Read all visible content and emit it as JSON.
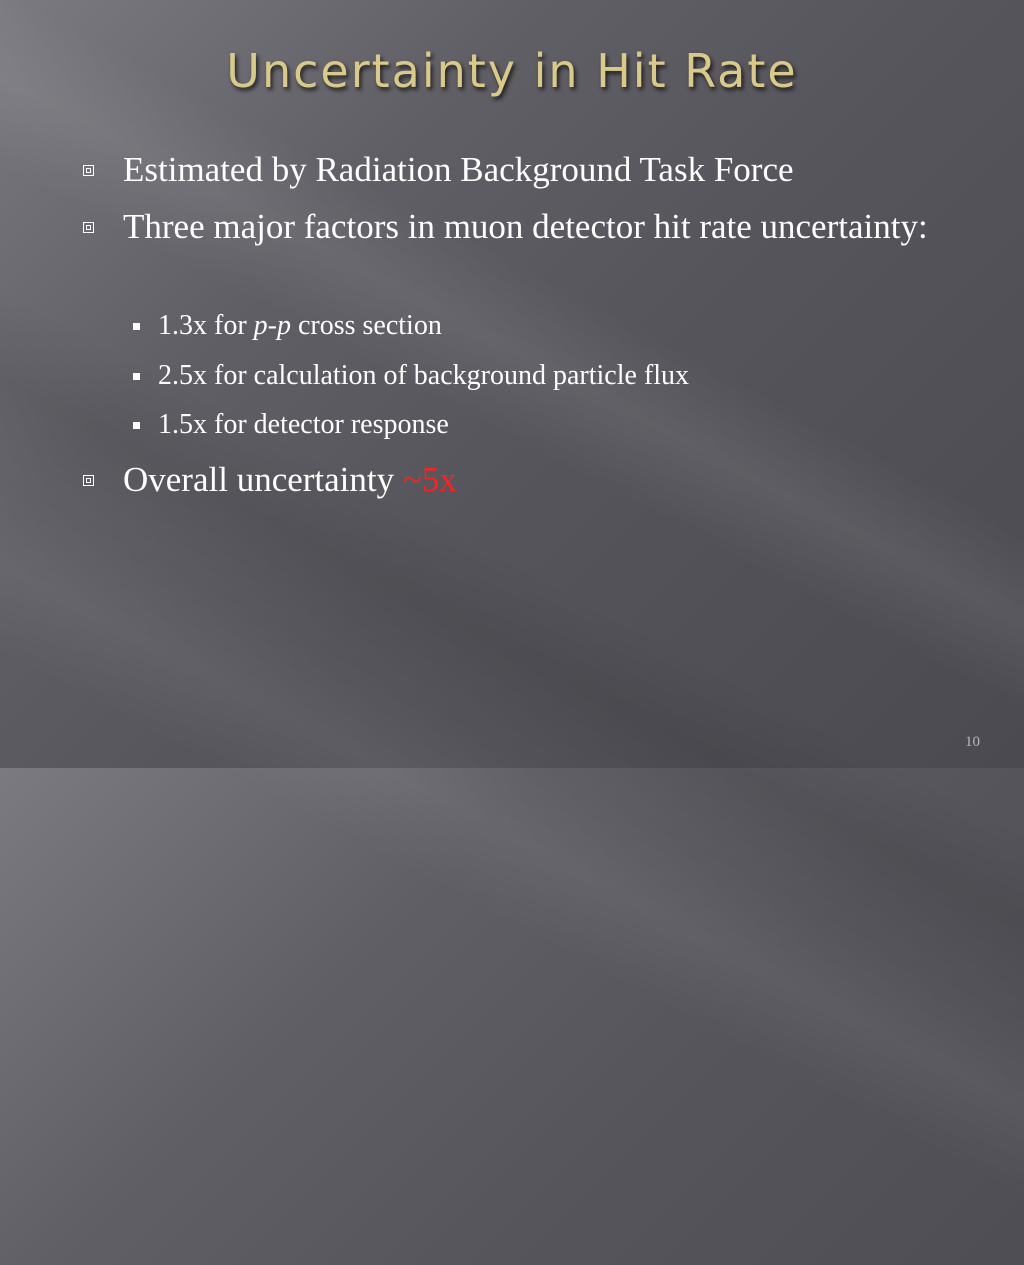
{
  "header": {
    "title": "Uncertainty in Hit Rate"
  },
  "bullets": [
    {
      "text": "Estimated by Radiation Background Task Force"
    },
    {
      "text": "Three major factors in muon detector hit rate uncertainty:",
      "subitems": [
        {
          "parts": [
            "1.3x for ",
            "p",
            "-",
            "p",
            " cross section"
          ]
        },
        {
          "parts": [
            "2.5x for calculation of background particle flux"
          ]
        },
        {
          "parts": [
            "1.5x for detector response"
          ]
        }
      ]
    },
    {
      "parts": [
        "Overall uncertainty ",
        "~5x"
      ]
    }
  ],
  "footer": {
    "page_number": "10"
  }
}
